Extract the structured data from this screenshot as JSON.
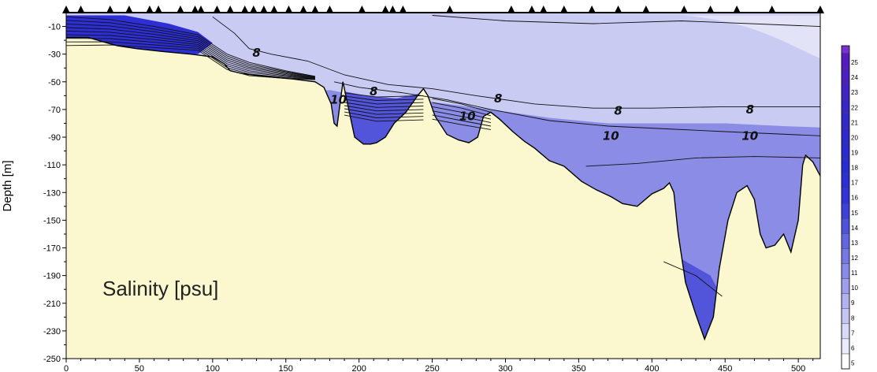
{
  "chart_data": {
    "type": "contour",
    "annotation": "Salinity [psu]",
    "ylabel": "Depth [m]",
    "xlabel": "",
    "xlim": [
      0,
      515
    ],
    "ylim": [
      -250,
      0
    ],
    "x_ticks": [
      0,
      50,
      100,
      150,
      200,
      250,
      300,
      350,
      400,
      450,
      500
    ],
    "y_ticks": [
      -10,
      -30,
      -50,
      -70,
      -90,
      -110,
      -130,
      -150,
      -170,
      -190,
      -210,
      -230,
      -250
    ],
    "station_x": [
      0,
      10,
      30,
      43,
      57,
      63,
      78,
      88,
      92,
      103,
      112,
      122,
      128,
      135,
      142,
      152,
      162,
      170,
      180,
      202,
      218,
      223,
      230,
      262,
      304,
      318,
      326,
      340,
      359,
      377,
      396,
      422,
      440,
      458,
      482,
      515
    ],
    "contour_labels": [
      {
        "text": "8",
        "x": 130,
        "y": -29
      },
      {
        "text": "8",
        "x": 210,
        "y": -57
      },
      {
        "text": "8",
        "x": 295,
        "y": -62
      },
      {
        "text": "8",
        "x": 377,
        "y": -71
      },
      {
        "text": "8",
        "x": 467,
        "y": -70
      },
      {
        "text": "10",
        "x": 186,
        "y": -63
      },
      {
        "text": "10",
        "x": 274,
        "y": -75
      },
      {
        "text": "10",
        "x": 372,
        "y": -89
      },
      {
        "text": "10",
        "x": 467,
        "y": -89
      }
    ],
    "bottom_profile": [
      [
        0,
        -18
      ],
      [
        15,
        -18
      ],
      [
        25,
        -21
      ],
      [
        35,
        -24
      ],
      [
        48,
        -26
      ],
      [
        65,
        -28
      ],
      [
        85,
        -30
      ],
      [
        100,
        -32
      ],
      [
        108,
        -37
      ],
      [
        112,
        -42
      ],
      [
        120,
        -44
      ],
      [
        135,
        -46
      ],
      [
        155,
        -48
      ],
      [
        170,
        -50
      ],
      [
        176,
        -54
      ],
      [
        181,
        -66
      ],
      [
        183,
        -80
      ],
      [
        185,
        -82
      ],
      [
        187,
        -66
      ],
      [
        189,
        -50
      ],
      [
        190,
        -55
      ],
      [
        193,
        -70
      ],
      [
        197,
        -90
      ],
      [
        203,
        -95
      ],
      [
        208,
        -95
      ],
      [
        212,
        -94
      ],
      [
        218,
        -90
      ],
      [
        224,
        -80
      ],
      [
        232,
        -72
      ],
      [
        240,
        -60
      ],
      [
        244,
        -55
      ],
      [
        247,
        -60
      ],
      [
        252,
        -75
      ],
      [
        260,
        -88
      ],
      [
        268,
        -92
      ],
      [
        275,
        -94
      ],
      [
        281,
        -90
      ],
      [
        285,
        -75
      ],
      [
        290,
        -72
      ],
      [
        296,
        -77
      ],
      [
        305,
        -86
      ],
      [
        313,
        -93
      ],
      [
        320,
        -98
      ],
      [
        330,
        -107
      ],
      [
        340,
        -111
      ],
      [
        352,
        -122
      ],
      [
        362,
        -128
      ],
      [
        372,
        -133
      ],
      [
        380,
        -138
      ],
      [
        390,
        -140
      ],
      [
        400,
        -131
      ],
      [
        408,
        -127
      ],
      [
        412,
        -123
      ],
      [
        415,
        -130
      ],
      [
        418,
        -160
      ],
      [
        423,
        -195
      ],
      [
        430,
        -218
      ],
      [
        436,
        -236
      ],
      [
        442,
        -220
      ],
      [
        446,
        -185
      ],
      [
        452,
        -150
      ],
      [
        458,
        -130
      ],
      [
        465,
        -125
      ],
      [
        470,
        -135
      ],
      [
        474,
        -160
      ],
      [
        478,
        -170
      ],
      [
        484,
        -168
      ],
      [
        490,
        -160
      ],
      [
        495,
        -173
      ],
      [
        500,
        -150
      ],
      [
        503,
        -110
      ],
      [
        505,
        -103
      ],
      [
        510,
        -108
      ],
      [
        515,
        -118
      ]
    ],
    "colorbar": {
      "levels": [
        5,
        6,
        7,
        8,
        9,
        10,
        11,
        12,
        13,
        14,
        15,
        16,
        17,
        18,
        19,
        20,
        21,
        22,
        23,
        24,
        25
      ],
      "colors": [
        "#ffffff",
        "#ebebfb",
        "#d8d9f7",
        "#c4c5f3",
        "#b1b2ef",
        "#9d9eec",
        "#898be8",
        "#7678e4",
        "#6465e1",
        "#5051dd",
        "#3f40da",
        "#3233d8",
        "#2d2ed5",
        "#2a2cd3",
        "#2b2bd0",
        "#2e2acd",
        "#3328ca",
        "#3a26c7",
        "#4223c4",
        "#4a20c1",
        "#541cbe"
      ],
      "colors_upper": [
        "#7a2fd0"
      ]
    },
    "colors": {
      "seabed": "#fbf8cf",
      "surface_water": "#c9cbf3",
      "deep_water": "#8a8ce6",
      "trough_water": "#5254d9",
      "coastal_water": "#2d2fd5",
      "offshore_surface": "#e2e3f7"
    },
    "grid": false
  }
}
